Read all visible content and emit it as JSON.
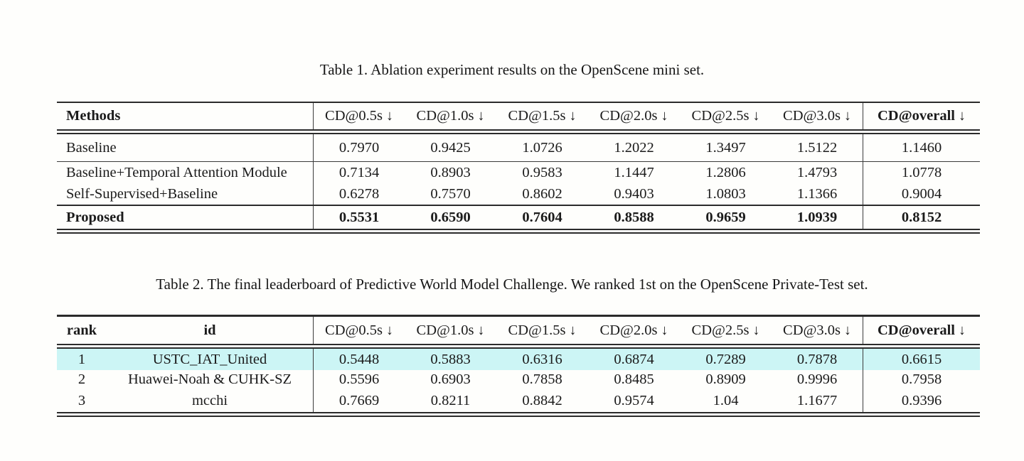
{
  "glyphs": {
    "down_arrow": "↓"
  },
  "table1": {
    "caption": "Table 1. Ablation experiment results on the OpenScene mini set.",
    "header": {
      "method_label": "Methods",
      "cd_labels": [
        "CD@0.5s",
        "CD@1.0s",
        "CD@1.5s",
        "CD@2.0s",
        "CD@2.5s",
        "CD@3.0s"
      ],
      "overall_label": "CD@overall"
    },
    "rows": [
      {
        "method": "Baseline",
        "values": [
          "0.7970",
          "0.9425",
          "1.0726",
          "1.2022",
          "1.3497",
          "1.5122"
        ],
        "overall": "1.1460"
      },
      {
        "method": "Baseline+Temporal Attention Module",
        "values": [
          "0.7134",
          "0.8903",
          "0.9583",
          "1.1447",
          "1.2806",
          "1.4793"
        ],
        "overall": "1.0778"
      },
      {
        "method": "Self-Supervised+Baseline",
        "values": [
          "0.6278",
          "0.7570",
          "0.8602",
          "0.9403",
          "1.0803",
          "1.1366"
        ],
        "overall": "0.9004"
      },
      {
        "method": "Proposed",
        "values": [
          "0.5531",
          "0.6590",
          "0.7604",
          "0.8588",
          "0.9659",
          "1.0939"
        ],
        "overall": "0.8152"
      }
    ]
  },
  "table2": {
    "caption": "Table 2. The final leaderboard of Predictive World Model Challenge. We ranked 1st on the OpenScene Private-Test set.",
    "highlight_color": "#ccf5f5",
    "header": {
      "rank_label": "rank",
      "id_label": "id",
      "cd_labels": [
        "CD@0.5s",
        "CD@1.0s",
        "CD@1.5s",
        "CD@2.0s",
        "CD@2.5s",
        "CD@3.0s"
      ],
      "overall_label": "CD@overall"
    },
    "rows": [
      {
        "rank": "1",
        "id": "USTC_IAT_United",
        "values": [
          "0.5448",
          "0.5883",
          "0.6316",
          "0.6874",
          "0.7289",
          "0.7878"
        ],
        "overall": "0.6615"
      },
      {
        "rank": "2",
        "id": "Huawei-Noah & CUHK-SZ",
        "values": [
          "0.5596",
          "0.6903",
          "0.7858",
          "0.8485",
          "0.8909",
          "0.9996"
        ],
        "overall": "0.7958"
      },
      {
        "rank": "3",
        "id": "mcchi",
        "values": [
          "0.7669",
          "0.8211",
          "0.8842",
          "0.9574",
          "1.04",
          "1.1677"
        ],
        "overall": "0.9396"
      }
    ]
  }
}
